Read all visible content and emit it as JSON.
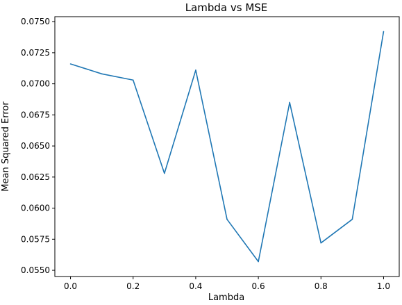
{
  "chart_data": {
    "type": "line",
    "title": "Lambda vs MSE",
    "xlabel": "Lambda",
    "ylabel": "Mean Squared Error",
    "xlim": [
      -0.05,
      1.05
    ],
    "ylim": [
      0.0545,
      0.0754
    ],
    "grid": false,
    "x_ticks": [
      0.0,
      0.2,
      0.4,
      0.6,
      0.8,
      1.0
    ],
    "x_tick_labels": [
      "0.0",
      "0.2",
      "0.4",
      "0.6",
      "0.8",
      "1.0"
    ],
    "y_ticks": [
      0.055,
      0.0575,
      0.06,
      0.0625,
      0.065,
      0.0675,
      0.07,
      0.0725,
      0.075
    ],
    "y_tick_labels": [
      "0.0550",
      "0.0575",
      "0.0600",
      "0.0625",
      "0.0650",
      "0.0675",
      "0.0700",
      "0.0725",
      "0.0750"
    ],
    "series": [
      {
        "color": "#1f77b4",
        "x": [
          0.0,
          0.1,
          0.2,
          0.3,
          0.4,
          0.5,
          0.6,
          0.7,
          0.8,
          0.9,
          1.0
        ],
        "y": [
          0.0716,
          0.0708,
          0.0703,
          0.0628,
          0.0711,
          0.0591,
          0.0557,
          0.0685,
          0.0572,
          0.0591,
          0.0742
        ]
      }
    ]
  }
}
